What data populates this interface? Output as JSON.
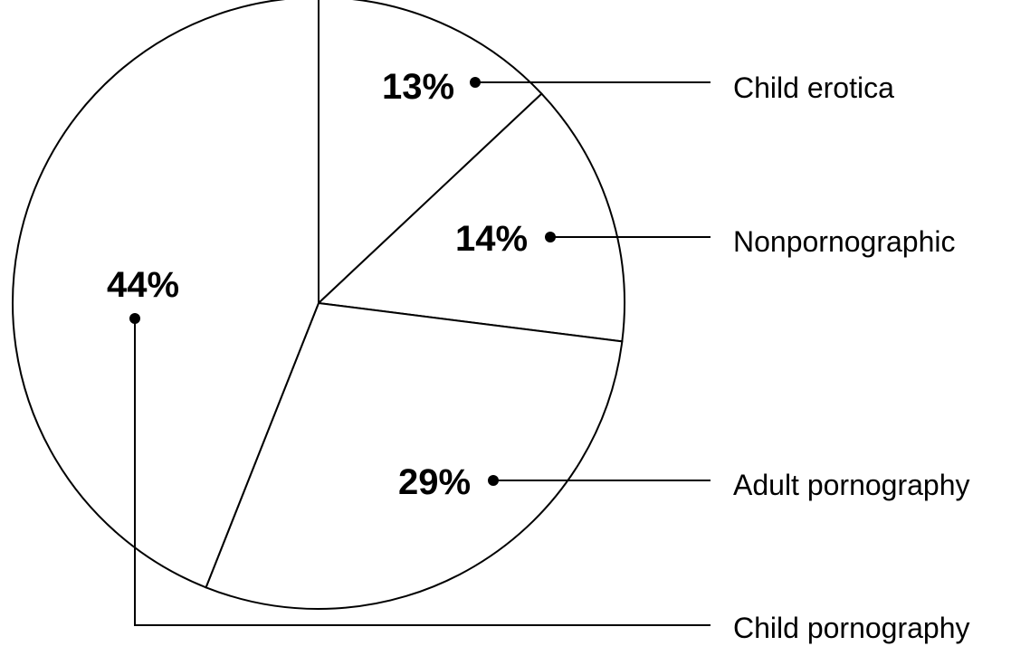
{
  "chart_data": {
    "type": "pie",
    "title": "",
    "start_angle_deg": 0,
    "direction": "clockwise",
    "slices": [
      {
        "name": "Child erotica",
        "value": 13,
        "value_label": "13%"
      },
      {
        "name": "Nonpornographic",
        "value": 14,
        "value_label": "14%"
      },
      {
        "name": "Adult pornography",
        "value": 29,
        "value_label": "29%"
      },
      {
        "name": "Child pornography",
        "value": 44,
        "value_label": "44%"
      }
    ],
    "legend": "right, leader lines",
    "colors": {
      "fill": "#ffffff",
      "stroke": "#000000"
    }
  }
}
